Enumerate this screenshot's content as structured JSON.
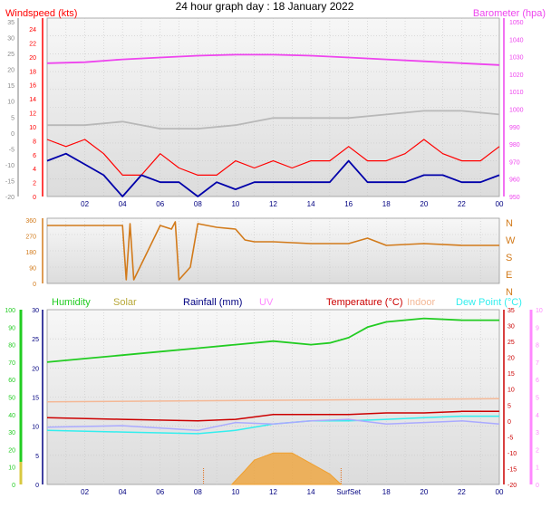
{
  "title": "24 hour graph day : 18 January 2022",
  "colors": {
    "wind": "#ff0000",
    "gust": "#ff0000",
    "avg_wind": "#0000aa",
    "temp_grey": "#b8b8b8",
    "barometer": "#ee44ee",
    "direction": "#d27a1a",
    "humidity": "#22cc22",
    "solar": "#f0a030",
    "rainfall": "#000080",
    "uv": "#ff88ff",
    "temperature": "#cc0000",
    "indoor": "#f4b896",
    "dewpoint": "#33eeee",
    "wind_chill": "#aaaaff",
    "grid": "#c8c8c8",
    "panel_bg": "#ececec"
  },
  "chart_data": [
    {
      "type": "line",
      "panel": "wind",
      "x_labels": [
        "02",
        "04",
        "06",
        "08",
        "10",
        "12",
        "14",
        "16",
        "18",
        "20",
        "22",
        "00"
      ],
      "left_axis": {
        "label": "Windspeed (kts)",
        "ticks": [
          "24",
          "22",
          "20",
          "18",
          "16",
          "14",
          "12",
          "10",
          "8",
          "6",
          "4",
          "2",
          "0"
        ],
        "ylim": [
          0,
          25
        ]
      },
      "left_outer_axis": {
        "ticks": [
          "35",
          "30",
          "25",
          "20",
          "15",
          "10",
          "5",
          "0",
          "-5",
          "-10",
          "-15",
          "-20"
        ]
      },
      "right_axis": {
        "label": "Barometer (hpa)",
        "ticks": [
          "1050",
          "1040",
          "1030",
          "1020",
          "1010",
          "1000",
          "990",
          "980",
          "970",
          "960",
          "950"
        ],
        "ylim": [
          955,
          1050
        ]
      },
      "series": [
        {
          "color_key": "barometer",
          "axis": "right",
          "x": [
            0,
            2,
            4,
            6,
            8,
            10,
            12,
            14,
            16,
            18,
            20,
            22,
            24
          ],
          "y": [
            1026,
            1026.5,
            1028,
            1029,
            1030,
            1030.5,
            1030.5,
            1030,
            1029,
            1028,
            1027,
            1026,
            1025
          ]
        },
        {
          "color_key": "temp_grey",
          "axis": "left",
          "x": [
            0,
            2,
            4,
            6,
            8,
            10,
            12,
            14,
            16,
            18,
            20,
            22,
            24
          ],
          "y": [
            10,
            10,
            10.5,
            9.5,
            9.5,
            10,
            11,
            11,
            11,
            11.5,
            12,
            12,
            11.5
          ]
        },
        {
          "color_key": "wind",
          "axis": "left",
          "x": [
            0,
            1,
            2,
            3,
            4,
            5,
            6,
            7,
            8,
            9,
            10,
            11,
            12,
            13,
            14,
            15,
            16,
            17,
            18,
            19,
            20,
            21,
            22,
            23,
            24
          ],
          "y": [
            8,
            7,
            8,
            6,
            3,
            3,
            6,
            4,
            3,
            3,
            5,
            4,
            5,
            4,
            5,
            5,
            7,
            5,
            5,
            6,
            8,
            6,
            5,
            5,
            7
          ]
        },
        {
          "color_key": "avg_wind",
          "axis": "left",
          "x": [
            0,
            1,
            2,
            3,
            4,
            5,
            6,
            7,
            8,
            9,
            10,
            11,
            12,
            13,
            14,
            15,
            16,
            17,
            18,
            19,
            20,
            21,
            22,
            23,
            24
          ],
          "y": [
            5,
            6,
            4.5,
            3,
            0,
            3,
            2,
            2,
            0,
            2,
            1,
            2,
            2,
            2,
            2,
            2,
            5,
            2,
            2,
            2,
            3,
            3,
            2,
            2,
            3
          ]
        }
      ]
    },
    {
      "type": "line",
      "panel": "direction",
      "right_axis": {
        "ticks": [
          "N",
          "W",
          "S",
          "E",
          "N"
        ]
      },
      "left_axis": {
        "ticks": [
          "360",
          "270",
          "180",
          "90",
          "0"
        ],
        "ylim": [
          0,
          360
        ]
      },
      "series": [
        {
          "color_key": "direction",
          "x": [
            0,
            2,
            4,
            4.2,
            4.4,
            4.6,
            6,
            6.6,
            6.8,
            7,
            7.6,
            8,
            9,
            10,
            10.5,
            11,
            12,
            14,
            16,
            17,
            18,
            20,
            22,
            24
          ],
          "y": [
            320,
            320,
            320,
            20,
            330,
            20,
            320,
            300,
            340,
            20,
            90,
            330,
            310,
            300,
            240,
            230,
            230,
            220,
            220,
            250,
            210,
            220,
            210,
            210
          ]
        }
      ]
    },
    {
      "type": "line",
      "panel": "temperature",
      "x_labels": [
        "02",
        "04",
        "06",
        "08",
        "10",
        "12",
        "14",
        "SurfSet",
        "18",
        "20",
        "22",
        "00"
      ],
      "legend": [
        "Humidity",
        "Solar",
        "Rainfall (mm)",
        "UV",
        "Temperature (°C)",
        "Indoor",
        "Dew Point (°C)"
      ],
      "left_axis": {
        "ticks": [
          "30",
          "25",
          "20",
          "15",
          "10",
          "5",
          "0"
        ],
        "ylim": [
          0,
          30
        ]
      },
      "left_outer_axis": {
        "ticks": [
          "100",
          "90",
          "80",
          "70",
          "60",
          "50",
          "40",
          "30",
          "20",
          "10",
          "0"
        ]
      },
      "right_axis": {
        "ticks": [
          "35",
          "30",
          "25",
          "20",
          "15",
          "10",
          "5",
          "0",
          "-5",
          "-10",
          "-15",
          "-20"
        ],
        "ylim": [
          -20,
          35
        ]
      },
      "right_outer_axis": {
        "ticks": [
          "10",
          "9",
          "8",
          "7",
          "6",
          "5",
          "4",
          "3",
          "2",
          "1",
          "0"
        ]
      },
      "series": [
        {
          "name": "Humidity",
          "color_key": "humidity",
          "axis": "humidity",
          "x": [
            0,
            2,
            4,
            6,
            8,
            10,
            12,
            14,
            15,
            16,
            17,
            18,
            20,
            22,
            24
          ],
          "y": [
            70,
            72,
            74,
            76,
            78,
            80,
            82,
            80,
            81,
            84,
            90,
            93,
            95,
            94,
            94
          ]
        },
        {
          "name": "Indoor",
          "color_key": "indoor",
          "axis": "right",
          "x": [
            0,
            24
          ],
          "y": [
            6,
            7
          ]
        },
        {
          "name": "Temperature (°C)",
          "color_key": "temperature",
          "axis": "right",
          "x": [
            0,
            4,
            8,
            10,
            12,
            14,
            16,
            18,
            20,
            22,
            24
          ],
          "y": [
            1,
            0.5,
            0,
            0.5,
            2,
            2,
            2,
            2.5,
            2.5,
            3,
            3
          ]
        },
        {
          "name": "Dew Point (°C)",
          "color_key": "dewpoint",
          "axis": "right",
          "x": [
            0,
            4,
            8,
            10,
            12,
            14,
            16,
            18,
            20,
            22,
            24
          ],
          "y": [
            -3,
            -3.5,
            -4,
            -3,
            -1,
            0,
            0,
            0.5,
            1,
            1.5,
            1.5
          ]
        },
        {
          "name": "Wind chill",
          "color_key": "wind_chill",
          "axis": "right",
          "x": [
            0,
            4,
            8,
            10,
            12,
            14,
            16,
            18,
            20,
            22,
            24
          ],
          "y": [
            -2,
            -1.5,
            -3,
            -0.5,
            -1,
            0,
            0.5,
            -1,
            -0.5,
            0,
            -1
          ]
        },
        {
          "name": "Solar",
          "color_key": "solar",
          "axis": "solar",
          "fill": true,
          "x": [
            9.8,
            10.5,
            11,
            12,
            13,
            14,
            15,
            15.6
          ],
          "y": [
            0,
            8,
            14,
            18,
            18,
            12,
            6,
            0
          ]
        }
      ]
    }
  ]
}
